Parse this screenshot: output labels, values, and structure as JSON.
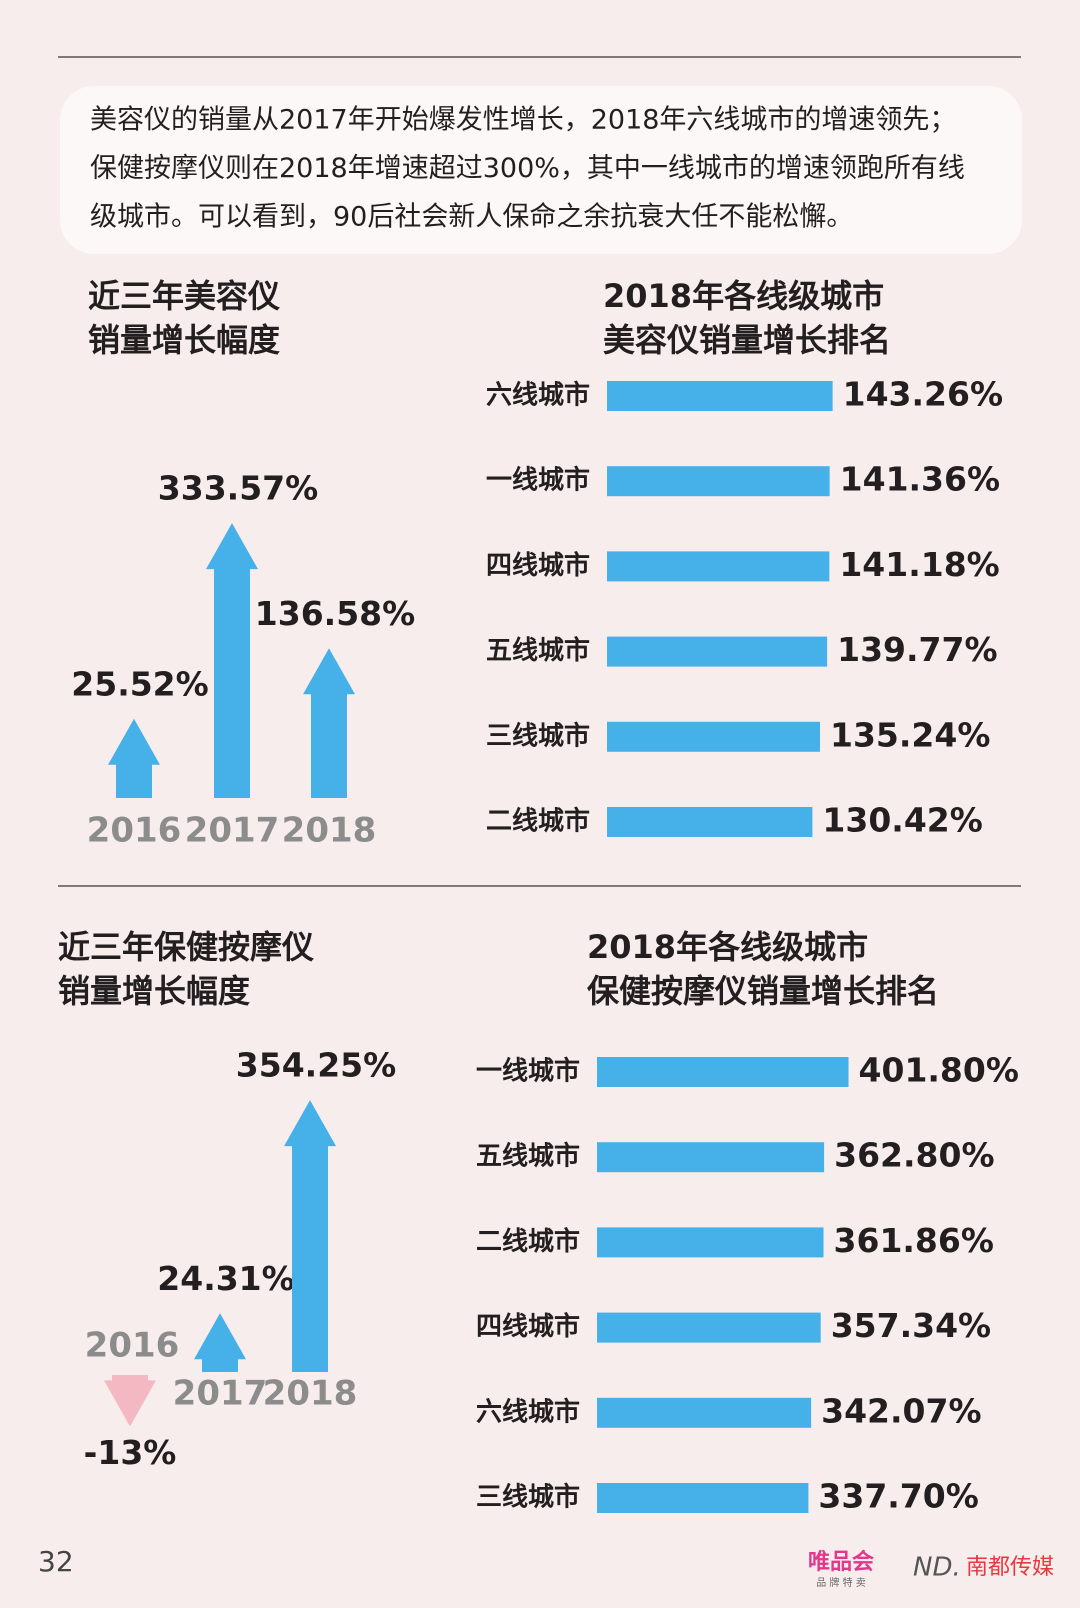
{
  "intro": [
    "美容仪的销量从2017年开始爆发性增长，2018年六线城市的增速领先；",
    "保健按摩仪则在2018年增速超过300%，其中一线城市的增速领跑所有线",
    "级城市。可以看到，90后社会新人保命之余抗衰大任不能松懈。"
  ],
  "chart_data": [
    {
      "type": "arrow",
      "title": [
        "近三年美容仪",
        "销量增长幅度"
      ],
      "categories": [
        "2016",
        "2017",
        "2018"
      ],
      "values": [
        25.52,
        333.57,
        136.58
      ],
      "value_labels": [
        "25.52%",
        "333.57%",
        "136.58%"
      ],
      "color": "#45b1e8",
      "negative_color": "#f3b8c1"
    },
    {
      "type": "bar",
      "title": [
        "2018年各线级城市",
        "美容仪销量增长排名"
      ],
      "categories": [
        "六线城市",
        "一线城市",
        "四线城市",
        "五线城市",
        "三线城市",
        "二线城市"
      ],
      "values": [
        143.26,
        141.36,
        141.18,
        139.77,
        135.24,
        130.42
      ],
      "value_labels": [
        "143.26%",
        "141.36%",
        "141.18%",
        "139.77%",
        "135.24%",
        "130.42%"
      ],
      "color": "#45b1e8"
    },
    {
      "type": "arrow",
      "title": [
        "近三年保健按摩仪",
        "销量增长幅度"
      ],
      "categories": [
        "2016",
        "2017",
        "2018"
      ],
      "values": [
        -13,
        24.31,
        354.25
      ],
      "value_labels": [
        "-13%",
        "24.31%",
        "354.25%"
      ],
      "color": "#45b1e8",
      "negative_color": "#f3b8c1"
    },
    {
      "type": "bar",
      "title": [
        "2018年各线级城市",
        "保健按摩仪销量增长排名"
      ],
      "categories": [
        "一线城市",
        "五线城市",
        "二线城市",
        "四线城市",
        "六线城市",
        "三线城市"
      ],
      "values": [
        401.8,
        362.8,
        361.86,
        357.34,
        342.07,
        337.7
      ],
      "value_labels": [
        "401.80%",
        "362.80%",
        "361.86%",
        "357.34%",
        "342.07%",
        "337.70%"
      ],
      "color": "#45b1e8"
    }
  ],
  "footer": {
    "page_number": "32",
    "brand": "唯品会",
    "brand_tagline": "品 牌 特 卖",
    "logo_mark": "ND.",
    "publisher": "南都传媒"
  }
}
